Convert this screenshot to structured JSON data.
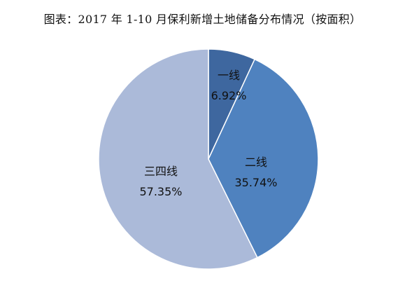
{
  "chart_data": {
    "type": "pie",
    "title": "图表：2017 年 1-10 月保利新增土地储备分布情况（按面积）",
    "categories": [
      "一线",
      "二线",
      "三四线"
    ],
    "values": [
      6.92,
      35.74,
      57.35
    ],
    "value_labels": [
      "6.92%",
      "35.74%",
      "57.35%"
    ],
    "colors": [
      "#3e679f",
      "#4f82bf",
      "#abbad9"
    ],
    "legend": "none"
  }
}
